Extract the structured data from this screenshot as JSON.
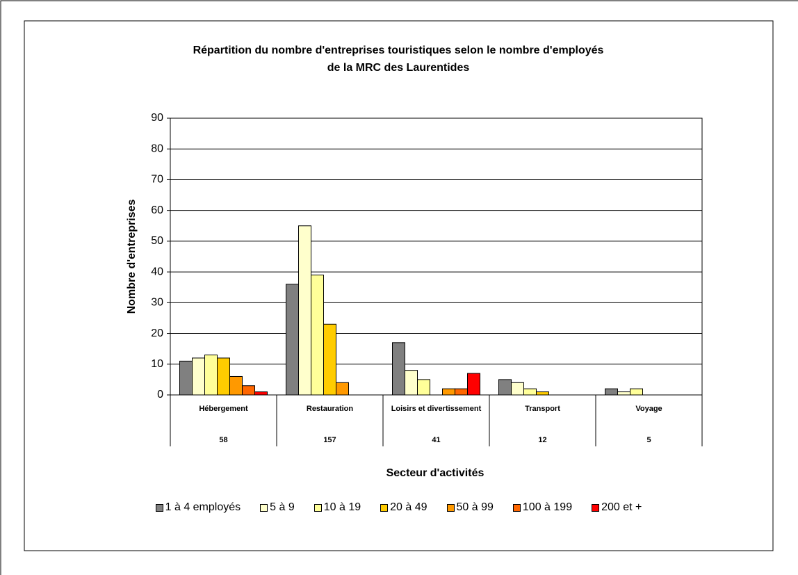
{
  "chart_data": {
    "type": "bar",
    "title": "Répartition du nombre d'entreprises touristiques selon le nombre d'employés",
    "subtitle": "de la MRC des Laurentides",
    "x_label": "Secteur d'activités",
    "y_label": "Nombre d'entreprises",
    "categories": [
      "Hébergement",
      "Restauration",
      "Loisirs et divertissement",
      "Transport",
      "Voyage"
    ],
    "totals": [
      58,
      157,
      41,
      12,
      5
    ],
    "series": [
      {
        "name": "1 à 4 employés",
        "color": "#808080",
        "values": [
          11,
          36,
          17,
          5,
          2
        ]
      },
      {
        "name": "5 à 9",
        "color": "#FFFFCC",
        "values": [
          12,
          55,
          8,
          4,
          1
        ]
      },
      {
        "name": "10 à 19",
        "color": "#FFFF99",
        "values": [
          13,
          39,
          5,
          2,
          2
        ]
      },
      {
        "name": "20 à 49",
        "color": "#FFCC00",
        "values": [
          12,
          23,
          0,
          1,
          0
        ]
      },
      {
        "name": "50 à 99",
        "color": "#FF9900",
        "values": [
          6,
          4,
          2,
          0,
          0
        ]
      },
      {
        "name": "100 à 199",
        "color": "#FF6600",
        "values": [
          3,
          0,
          2,
          0,
          0
        ]
      },
      {
        "name": "200 et +",
        "color": "#FF0000",
        "values": [
          1,
          0,
          7,
          0,
          0
        ]
      }
    ],
    "ylim": [
      0,
      90
    ],
    "yticks": [
      0,
      10,
      20,
      30,
      40,
      50,
      60,
      70,
      80,
      90
    ],
    "grid": true
  }
}
